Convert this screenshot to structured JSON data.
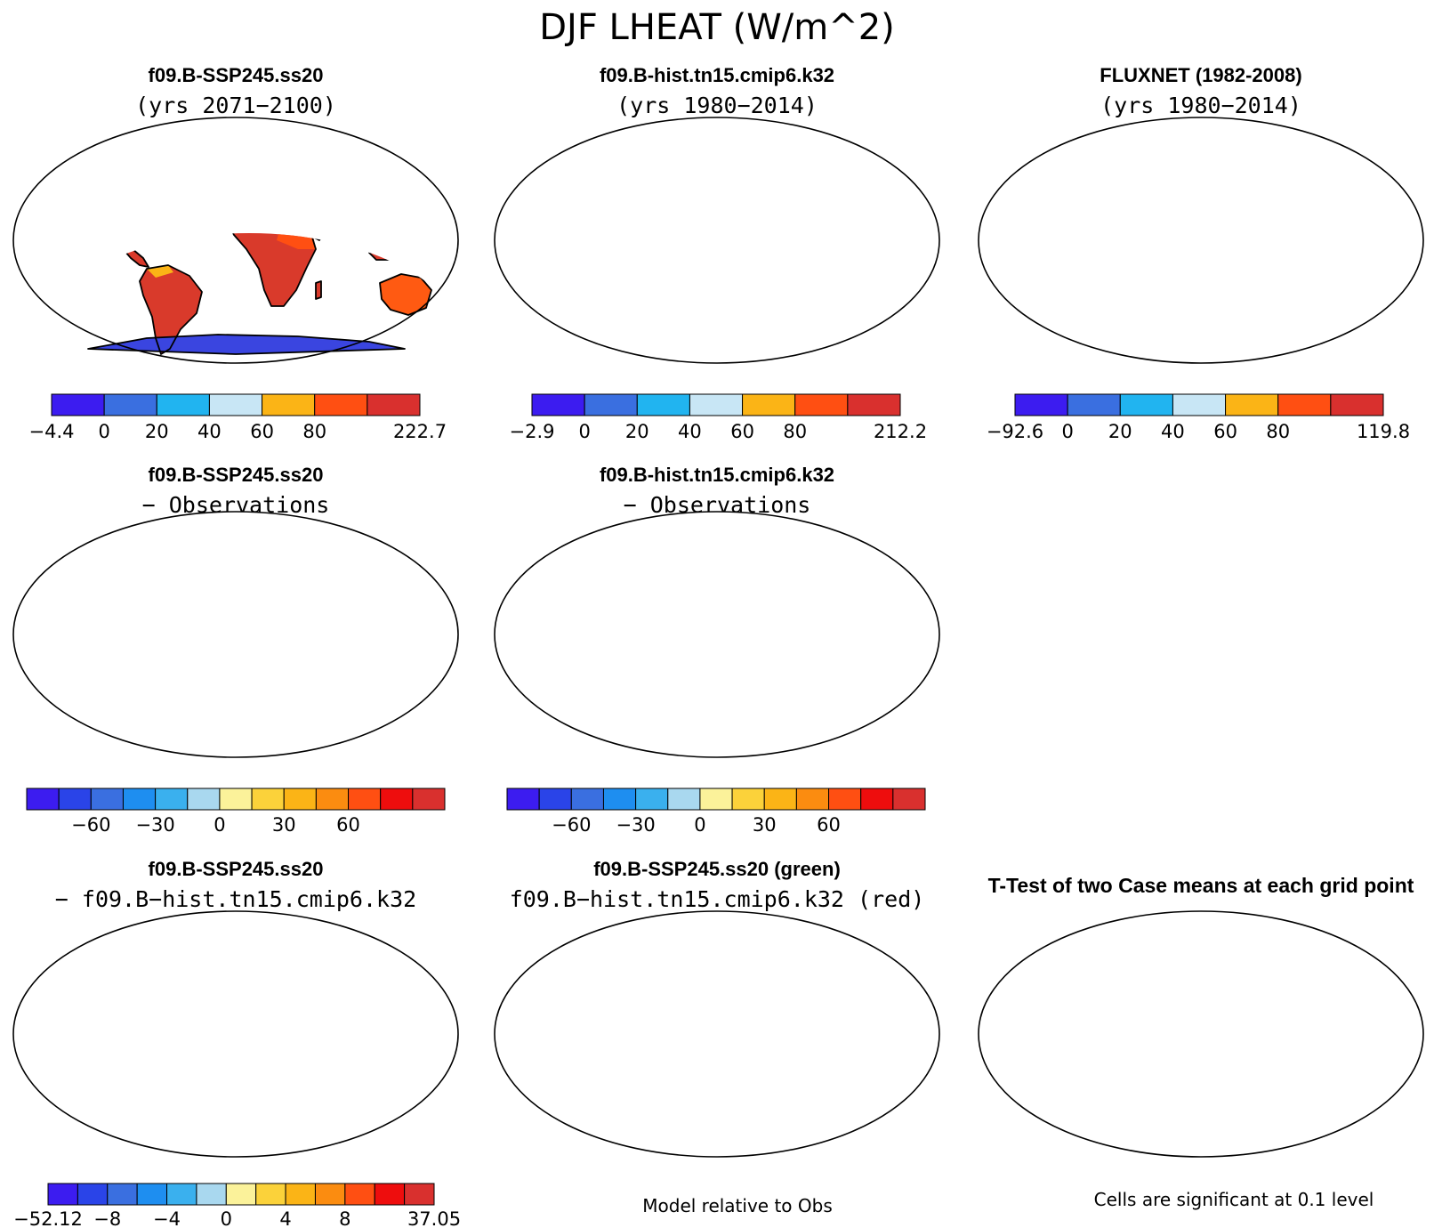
{
  "page": {
    "title": "DJF LHEAT (W/m^2)",
    "bottom_middle_note": "Model relative to Obs",
    "bottom_right_note": "Cells are significant at 0.1 level"
  },
  "colors": {
    "ocean": "#ffffff",
    "coast": "#000000",
    "cold_land": "#3f6fd8",
    "very_cold": "#3a3ae8",
    "tropical": "#d93a2b",
    "warm": "#f5b81c",
    "diff_pale": "#fbf29a",
    "diff_blue": "#a9d8ef",
    "ttest_red": "#ff0000",
    "mean_green": "#00ff00"
  },
  "panels": [
    {
      "id": "p1",
      "line1": "f09.B-SSP245.ss20",
      "line2": "(yrs 2071−2100)",
      "style": "mean"
    },
    {
      "id": "p2",
      "line1": "f09.B-hist.tn15.cmip6.k32",
      "line2": "(yrs 1980−2014)",
      "style": "mean"
    },
    {
      "id": "p3",
      "line1": "FLUXNET (1982-2008)",
      "line2": "(yrs 1980−2014)",
      "style": "obs"
    },
    {
      "id": "p4",
      "line1": "f09.B-SSP245.ss20",
      "line2": "− Observations",
      "style": "diff"
    },
    {
      "id": "p5",
      "line1": "f09.B-hist.tn15.cmip6.k32",
      "line2": "− Observations",
      "style": "diff"
    },
    {
      "id": "p7",
      "line1": "f09.B-SSP245.ss20",
      "line2": "− f09.B−hist.tn15.cmip6.k32",
      "style": "casediff"
    },
    {
      "id": "p8",
      "line1": "f09.B-SSP245.ss20 (green)",
      "line2": "f09.B−hist.tn15.cmip6.k32 (red)",
      "style": "greenred"
    },
    {
      "id": "p9",
      "line1": "T-Test of two Case means at each grid point",
      "line2": "",
      "style": "ttest"
    }
  ],
  "colorbars": [
    {
      "id": "cb1",
      "colors": [
        "#3c1cf0",
        "#3a6fe0",
        "#21b4f0",
        "#c8e6f5",
        "#fbb416",
        "#ff4f12",
        "#d9302e"
      ],
      "labels": [
        "−4.4",
        "0",
        "20",
        "40",
        "60",
        "80",
        "222.7"
      ]
    },
    {
      "id": "cb2",
      "colors": [
        "#3c1cf0",
        "#3a6fe0",
        "#21b4f0",
        "#c8e6f5",
        "#fbb416",
        "#ff4f12",
        "#d9302e"
      ],
      "labels": [
        "−2.9",
        "0",
        "20",
        "40",
        "60",
        "80",
        "212.2"
      ]
    },
    {
      "id": "cb3",
      "colors": [
        "#3c1cf0",
        "#3a6fe0",
        "#21b4f0",
        "#c8e6f5",
        "#fbb416",
        "#ff4f12",
        "#d9302e"
      ],
      "labels": [
        "−92.6",
        "0",
        "20",
        "40",
        "60",
        "80",
        "119.8"
      ]
    },
    {
      "id": "cb4",
      "colors": [
        "#3c1cf0",
        "#2a44e8",
        "#3a6fe0",
        "#1e8ef0",
        "#3ab0ee",
        "#a9d8ef",
        "#fbf29a",
        "#fbd23a",
        "#fbb416",
        "#fb8c10",
        "#ff4f12",
        "#ee0d0d",
        "#d9302e"
      ],
      "labels": [
        "−60",
        "−30",
        "0",
        "30",
        "60"
      ],
      "label_edges": [
        2,
        4,
        6,
        8,
        10
      ]
    },
    {
      "id": "cb5",
      "colors": [
        "#3c1cf0",
        "#2a44e8",
        "#3a6fe0",
        "#1e8ef0",
        "#3ab0ee",
        "#a9d8ef",
        "#fbf29a",
        "#fbd23a",
        "#fbb416",
        "#fb8c10",
        "#ff4f12",
        "#ee0d0d",
        "#d9302e"
      ],
      "labels": [
        "−60",
        "−30",
        "0",
        "30",
        "60"
      ],
      "label_edges": [
        2,
        4,
        6,
        8,
        10
      ]
    },
    {
      "id": "cb7",
      "colors": [
        "#3c1cf0",
        "#2a44e8",
        "#3a6fe0",
        "#1e8ef0",
        "#3ab0ee",
        "#a9d8ef",
        "#fbf29a",
        "#fbd23a",
        "#fbb416",
        "#fb8c10",
        "#ff4f12",
        "#ee0d0d",
        "#d9302e"
      ],
      "labels": [
        "−52.12",
        "−8",
        "−4",
        "0",
        "4",
        "8",
        "37.05"
      ],
      "label_edges": [
        0,
        2,
        4,
        6,
        8,
        10,
        13
      ]
    }
  ]
}
